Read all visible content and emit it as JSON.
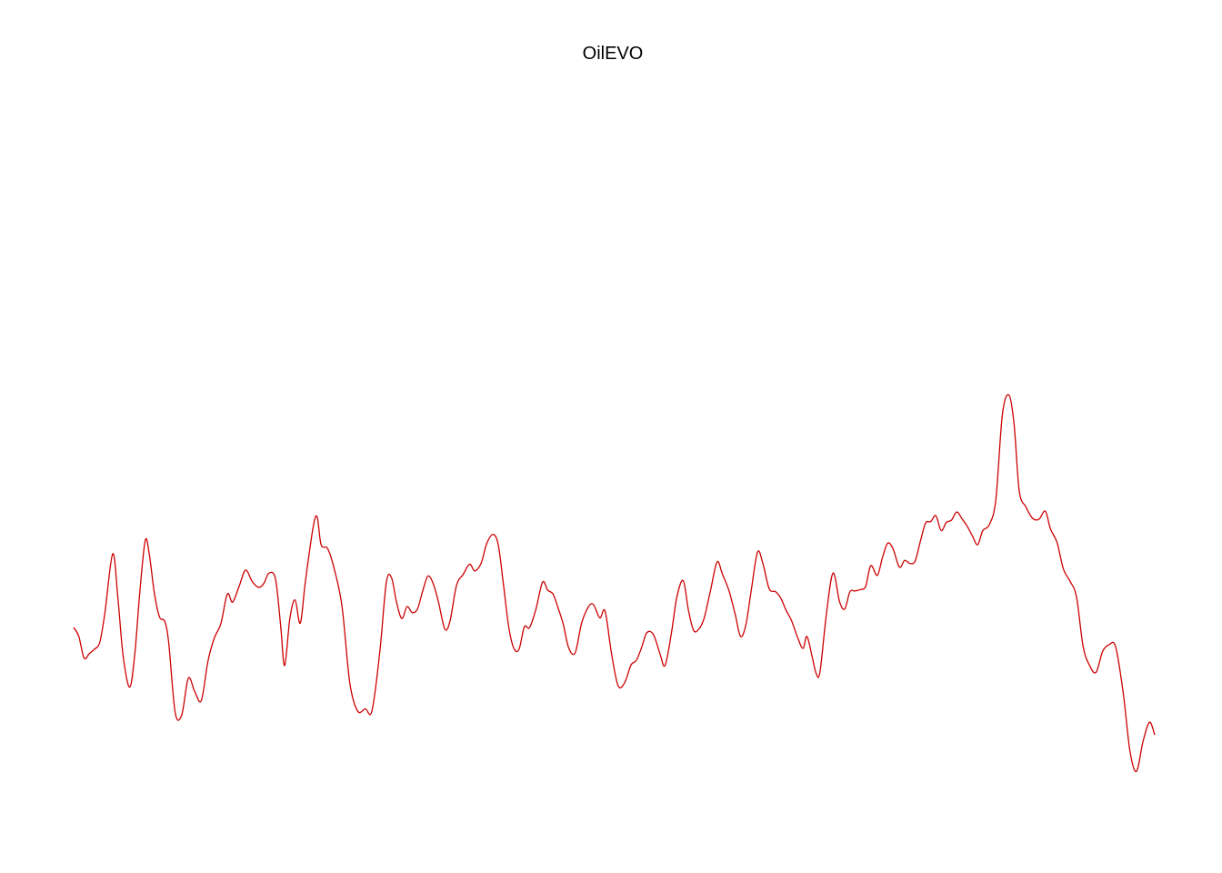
{
  "chart_data": {
    "type": "line",
    "title": "OilEVO",
    "xlabel": "",
    "ylabel": "",
    "axes_visible": false,
    "grid": false,
    "legend": "none",
    "line_color": "#cc0000",
    "ylim": [
      0,
      1
    ],
    "series": [
      {
        "values": [
          [
            0.0,
            0.256
          ],
          [
            0.004,
            0.244
          ],
          [
            0.008,
            0.215
          ],
          [
            0.012,
            0.221
          ],
          [
            0.016,
            0.227
          ],
          [
            0.02,
            0.236
          ],
          [
            0.024,
            0.276
          ],
          [
            0.03,
            0.355
          ],
          [
            0.034,
            0.295
          ],
          [
            0.038,
            0.218
          ],
          [
            0.043,
            0.176
          ],
          [
            0.047,
            0.221
          ],
          [
            0.051,
            0.308
          ],
          [
            0.055,
            0.373
          ],
          [
            0.058,
            0.355
          ],
          [
            0.062,
            0.302
          ],
          [
            0.066,
            0.27
          ],
          [
            0.07,
            0.264
          ],
          [
            0.073,
            0.235
          ],
          [
            0.078,
            0.142
          ],
          [
            0.083,
            0.139
          ],
          [
            0.088,
            0.188
          ],
          [
            0.093,
            0.17
          ],
          [
            0.098,
            0.158
          ],
          [
            0.103,
            0.21
          ],
          [
            0.108,
            0.242
          ],
          [
            0.113,
            0.261
          ],
          [
            0.118,
            0.301
          ],
          [
            0.122,
            0.29
          ],
          [
            0.127,
            0.311
          ],
          [
            0.132,
            0.333
          ],
          [
            0.137,
            0.318
          ],
          [
            0.142,
            0.31
          ],
          [
            0.146,
            0.315
          ],
          [
            0.15,
            0.329
          ],
          [
            0.155,
            0.321
          ],
          [
            0.159,
            0.257
          ],
          [
            0.162,
            0.205
          ],
          [
            0.166,
            0.268
          ],
          [
            0.17,
            0.293
          ],
          [
            0.174,
            0.262
          ],
          [
            0.178,
            0.319
          ],
          [
            0.184,
            0.392
          ],
          [
            0.187,
            0.404
          ],
          [
            0.19,
            0.367
          ],
          [
            0.195,
            0.362
          ],
          [
            0.2,
            0.335
          ],
          [
            0.206,
            0.285
          ],
          [
            0.212,
            0.182
          ],
          [
            0.218,
            0.144
          ],
          [
            0.224,
            0.147
          ],
          [
            0.229,
            0.144
          ],
          [
            0.235,
            0.222
          ],
          [
            0.24,
            0.316
          ],
          [
            0.244,
            0.323
          ],
          [
            0.248,
            0.289
          ],
          [
            0.252,
            0.268
          ],
          [
            0.256,
            0.284
          ],
          [
            0.26,
            0.276
          ],
          [
            0.264,
            0.281
          ],
          [
            0.268,
            0.305
          ],
          [
            0.272,
            0.325
          ],
          [
            0.276,
            0.315
          ],
          [
            0.28,
            0.291
          ],
          [
            0.285,
            0.254
          ],
          [
            0.289,
            0.265
          ],
          [
            0.294,
            0.313
          ],
          [
            0.299,
            0.327
          ],
          [
            0.304,
            0.341
          ],
          [
            0.308,
            0.332
          ],
          [
            0.313,
            0.343
          ],
          [
            0.317,
            0.368
          ],
          [
            0.322,
            0.381
          ],
          [
            0.326,
            0.367
          ],
          [
            0.33,
            0.314
          ],
          [
            0.334,
            0.257
          ],
          [
            0.338,
            0.228
          ],
          [
            0.342,
            0.227
          ],
          [
            0.346,
            0.257
          ],
          [
            0.35,
            0.256
          ],
          [
            0.355,
            0.281
          ],
          [
            0.36,
            0.317
          ],
          [
            0.364,
            0.306
          ],
          [
            0.368,
            0.301
          ],
          [
            0.372,
            0.282
          ],
          [
            0.376,
            0.26
          ],
          [
            0.38,
            0.229
          ],
          [
            0.385,
            0.222
          ],
          [
            0.39,
            0.262
          ],
          [
            0.395,
            0.283
          ],
          [
            0.399,
            0.287
          ],
          [
            0.404,
            0.269
          ],
          [
            0.408,
            0.278
          ],
          [
            0.413,
            0.221
          ],
          [
            0.418,
            0.178
          ],
          [
            0.423,
            0.182
          ],
          [
            0.428,
            0.206
          ],
          [
            0.432,
            0.212
          ],
          [
            0.436,
            0.229
          ],
          [
            0.44,
            0.249
          ],
          [
            0.445,
            0.247
          ],
          [
            0.45,
            0.222
          ],
          [
            0.454,
            0.205
          ],
          [
            0.459,
            0.249
          ],
          [
            0.463,
            0.296
          ],
          [
            0.468,
            0.319
          ],
          [
            0.472,
            0.279
          ],
          [
            0.476,
            0.252
          ],
          [
            0.48,
            0.254
          ],
          [
            0.484,
            0.268
          ],
          [
            0.489,
            0.306
          ],
          [
            0.494,
            0.344
          ],
          [
            0.498,
            0.328
          ],
          [
            0.503,
            0.306
          ],
          [
            0.508,
            0.273
          ],
          [
            0.512,
            0.244
          ],
          [
            0.516,
            0.259
          ],
          [
            0.52,
            0.303
          ],
          [
            0.525,
            0.357
          ],
          [
            0.529,
            0.343
          ],
          [
            0.534,
            0.308
          ],
          [
            0.539,
            0.304
          ],
          [
            0.543,
            0.295
          ],
          [
            0.547,
            0.279
          ],
          [
            0.551,
            0.266
          ],
          [
            0.556,
            0.242
          ],
          [
            0.56,
            0.228
          ],
          [
            0.563,
            0.244
          ],
          [
            0.567,
            0.217
          ],
          [
            0.57,
            0.195
          ],
          [
            0.573,
            0.196
          ],
          [
            0.578,
            0.275
          ],
          [
            0.583,
            0.329
          ],
          [
            0.588,
            0.291
          ],
          [
            0.592,
            0.281
          ],
          [
            0.596,
            0.304
          ],
          [
            0.6,
            0.305
          ],
          [
            0.604,
            0.307
          ],
          [
            0.608,
            0.311
          ],
          [
            0.612,
            0.339
          ],
          [
            0.617,
            0.326
          ],
          [
            0.621,
            0.35
          ],
          [
            0.625,
            0.369
          ],
          [
            0.629,
            0.362
          ],
          [
            0.634,
            0.337
          ],
          [
            0.638,
            0.346
          ],
          [
            0.642,
            0.342
          ],
          [
            0.646,
            0.345
          ],
          [
            0.65,
            0.371
          ],
          [
            0.654,
            0.396
          ],
          [
            0.658,
            0.398
          ],
          [
            0.662,
            0.406
          ],
          [
            0.666,
            0.386
          ],
          [
            0.67,
            0.397
          ],
          [
            0.674,
            0.4
          ],
          [
            0.678,
            0.411
          ],
          [
            0.682,
            0.402
          ],
          [
            0.686,
            0.392
          ],
          [
            0.69,
            0.379
          ],
          [
            0.694,
            0.367
          ],
          [
            0.698,
            0.386
          ],
          [
            0.703,
            0.394
          ],
          [
            0.708,
            0.427
          ],
          [
            0.713,
            0.541
          ],
          [
            0.718,
            0.568
          ],
          [
            0.722,
            0.529
          ],
          [
            0.726,
            0.439
          ],
          [
            0.731,
            0.418
          ],
          [
            0.736,
            0.403
          ],
          [
            0.741,
            0.401
          ],
          [
            0.746,
            0.412
          ],
          [
            0.75,
            0.388
          ],
          [
            0.755,
            0.37
          ],
          [
            0.76,
            0.334
          ],
          [
            0.765,
            0.318
          ],
          [
            0.77,
            0.297
          ],
          [
            0.775,
            0.231
          ],
          [
            0.78,
            0.205
          ],
          [
            0.785,
            0.196
          ],
          [
            0.79,
            0.224
          ],
          [
            0.795,
            0.233
          ],
          [
            0.8,
            0.23
          ],
          [
            0.806,
            0.166
          ],
          [
            0.811,
            0.09
          ],
          [
            0.816,
            0.063
          ],
          [
            0.821,
            0.103
          ],
          [
            0.826,
            0.129
          ],
          [
            0.83,
            0.112
          ]
        ]
      }
    ]
  }
}
